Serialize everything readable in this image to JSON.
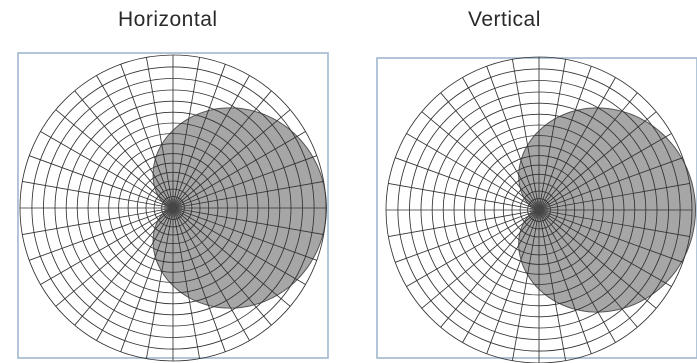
{
  "chart_data": [
    {
      "type": "polar",
      "title": "Horizontal",
      "pattern": "cardioid",
      "direction": "right",
      "grid": true,
      "ring_count": 16,
      "spoke_count": 36,
      "colors": {
        "fill": "#a6a6a6",
        "grid": "#333333",
        "frame": "#9fb7cf"
      }
    },
    {
      "type": "polar",
      "title": "Vertical",
      "pattern": "cardioid",
      "direction": "right",
      "grid": true,
      "ring_count": 16,
      "spoke_count": 36,
      "colors": {
        "fill": "#a6a6a6",
        "grid": "#333333",
        "frame": "#9fb7cf"
      }
    }
  ]
}
